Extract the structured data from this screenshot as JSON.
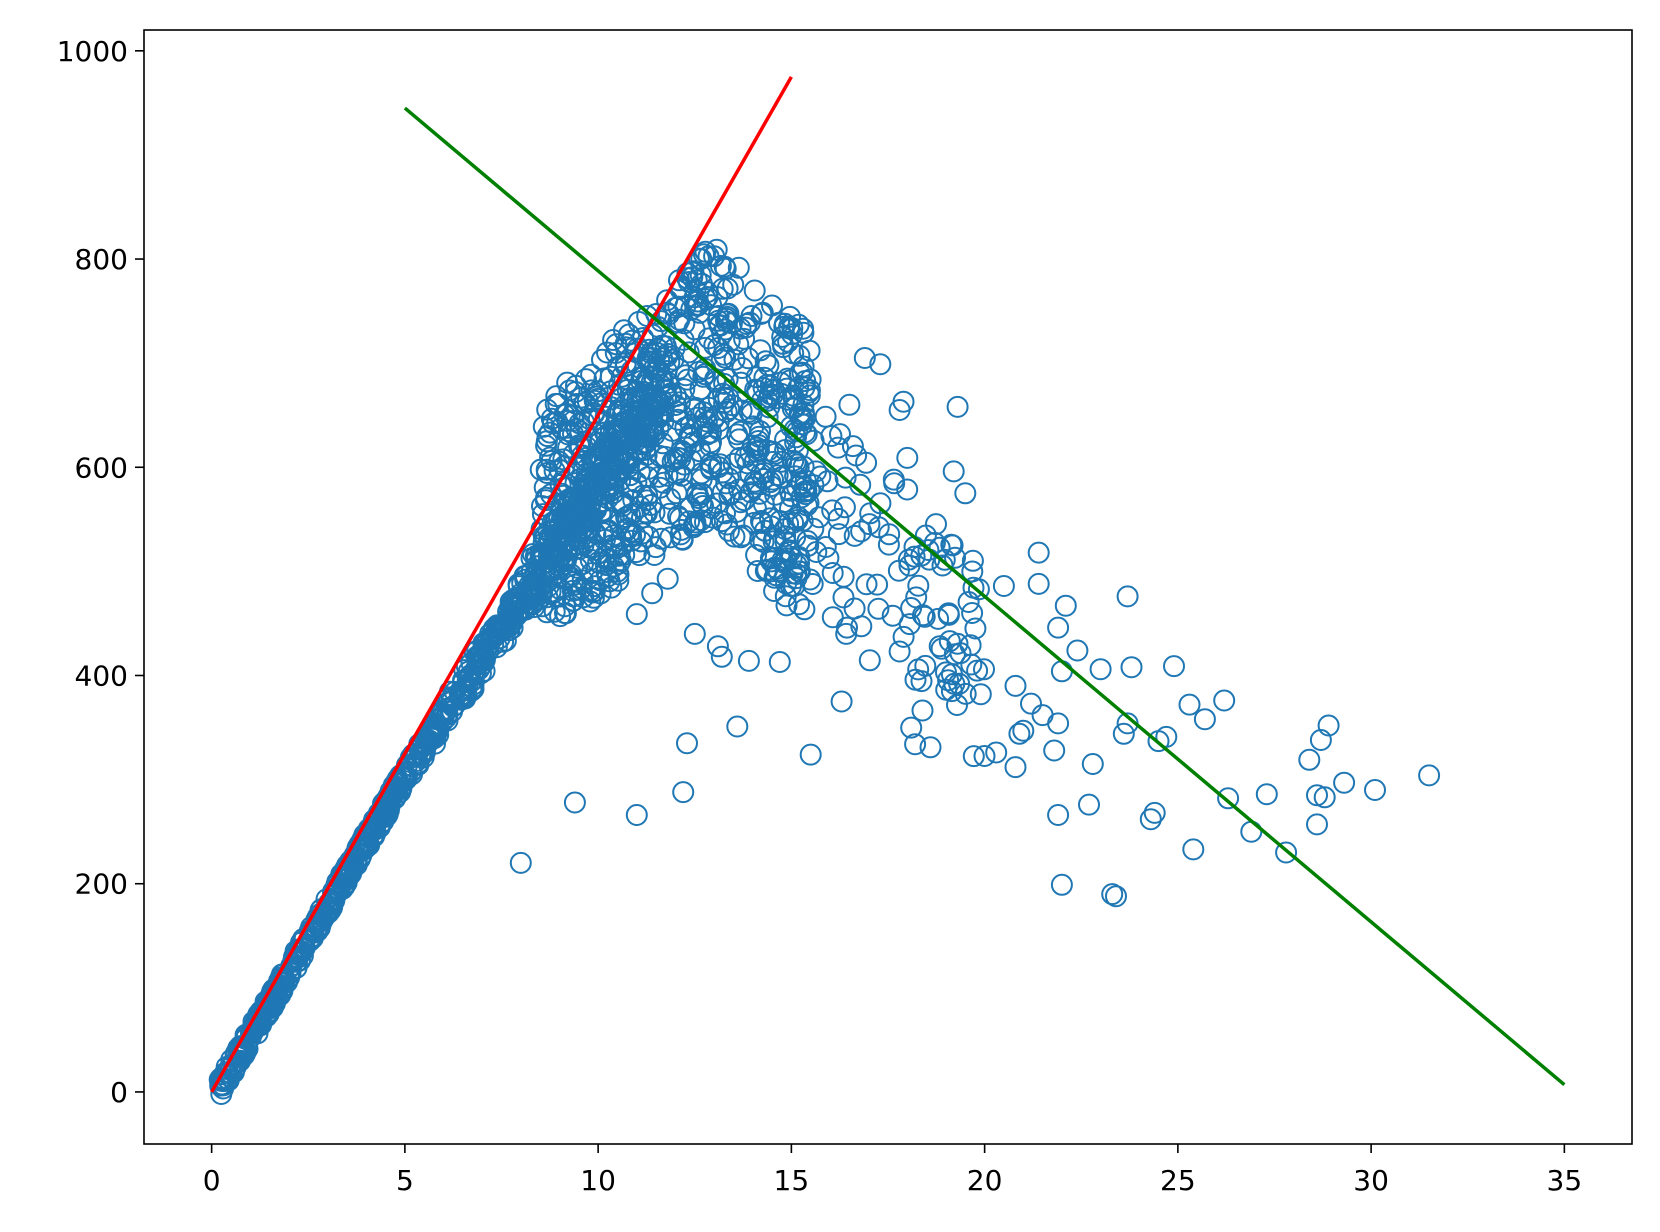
{
  "chart_data": {
    "type": "scatter",
    "title": "",
    "xlabel": "",
    "ylabel": "",
    "xlim": [
      -1.75,
      36.75
    ],
    "ylim": [
      -50,
      1020
    ],
    "x_ticks": [
      0,
      5,
      10,
      15,
      20,
      25,
      30,
      35
    ],
    "y_ticks": [
      0,
      200,
      400,
      600,
      800,
      1000
    ],
    "grid": false,
    "legend": "none",
    "colors": {
      "scatter": "#1f77b4",
      "red_line": "#ff0000",
      "green_line": "#008000"
    },
    "series": [
      {
        "type": "scatter",
        "marker": "open-circle",
        "outlier_points": [
          [
            8.0,
            220
          ],
          [
            9.4,
            278
          ],
          [
            11.0,
            266
          ],
          [
            12.2,
            288
          ],
          [
            12.3,
            335
          ],
          [
            13.6,
            351
          ],
          [
            11.0,
            459
          ],
          [
            11.4,
            479
          ],
          [
            11.8,
            493
          ],
          [
            12.5,
            440
          ],
          [
            13.1,
            428
          ],
          [
            13.2,
            418
          ],
          [
            13.9,
            414
          ],
          [
            14.7,
            413
          ],
          [
            15.5,
            324
          ],
          [
            16.3,
            375
          ],
          [
            17.8,
            423
          ],
          [
            18.1,
            350
          ],
          [
            18.2,
            334
          ],
          [
            18.6,
            331
          ],
          [
            19.0,
            403
          ],
          [
            19.1,
            433
          ],
          [
            19.9,
            382
          ],
          [
            20.3,
            326
          ],
          [
            20.8,
            312
          ],
          [
            20.8,
            390
          ],
          [
            20.9,
            344
          ],
          [
            21.0,
            347
          ],
          [
            21.2,
            373
          ],
          [
            21.5,
            362
          ],
          [
            21.8,
            328
          ],
          [
            21.9,
            354
          ],
          [
            21.9,
            266
          ],
          [
            22.0,
            199
          ],
          [
            22.0,
            404
          ],
          [
            22.4,
            424
          ],
          [
            22.7,
            276
          ],
          [
            22.8,
            315
          ],
          [
            23.0,
            406
          ],
          [
            23.3,
            190
          ],
          [
            23.4,
            188
          ],
          [
            23.6,
            344
          ],
          [
            23.7,
            354
          ],
          [
            23.7,
            476
          ],
          [
            23.8,
            408
          ],
          [
            24.3,
            262
          ],
          [
            24.4,
            268
          ],
          [
            24.5,
            337
          ],
          [
            24.7,
            341
          ],
          [
            24.9,
            409
          ],
          [
            25.3,
            372
          ],
          [
            25.4,
            233
          ],
          [
            25.7,
            358
          ],
          [
            26.2,
            376
          ],
          [
            26.3,
            282
          ],
          [
            26.9,
            250
          ],
          [
            27.3,
            286
          ],
          [
            27.8,
            230
          ],
          [
            28.4,
            319
          ],
          [
            28.6,
            257
          ],
          [
            28.6,
            285
          ],
          [
            28.7,
            338
          ],
          [
            28.8,
            283
          ],
          [
            28.9,
            352
          ],
          [
            29.3,
            297
          ],
          [
            30.1,
            290
          ],
          [
            31.5,
            304
          ],
          [
            17.9,
            663
          ],
          [
            19.3,
            658
          ],
          [
            19.5,
            575
          ],
          [
            18.0,
            609
          ],
          [
            19.2,
            596
          ],
          [
            20.5,
            486
          ],
          [
            21.4,
            518
          ],
          [
            21.4,
            488
          ],
          [
            21.9,
            446
          ],
          [
            22.1,
            467
          ],
          [
            16.9,
            705
          ],
          [
            17.3,
            699
          ],
          [
            16.5,
            660
          ],
          [
            17.8,
            655
          ]
        ]
      },
      {
        "name": "",
        "type": "line",
        "x": [
          0,
          15
        ],
        "y": [
          0,
          975
        ]
      },
      {
        "name": "",
        "type": "line",
        "x": [
          5,
          35
        ],
        "y": [
          945,
          7
        ]
      }
    ]
  }
}
